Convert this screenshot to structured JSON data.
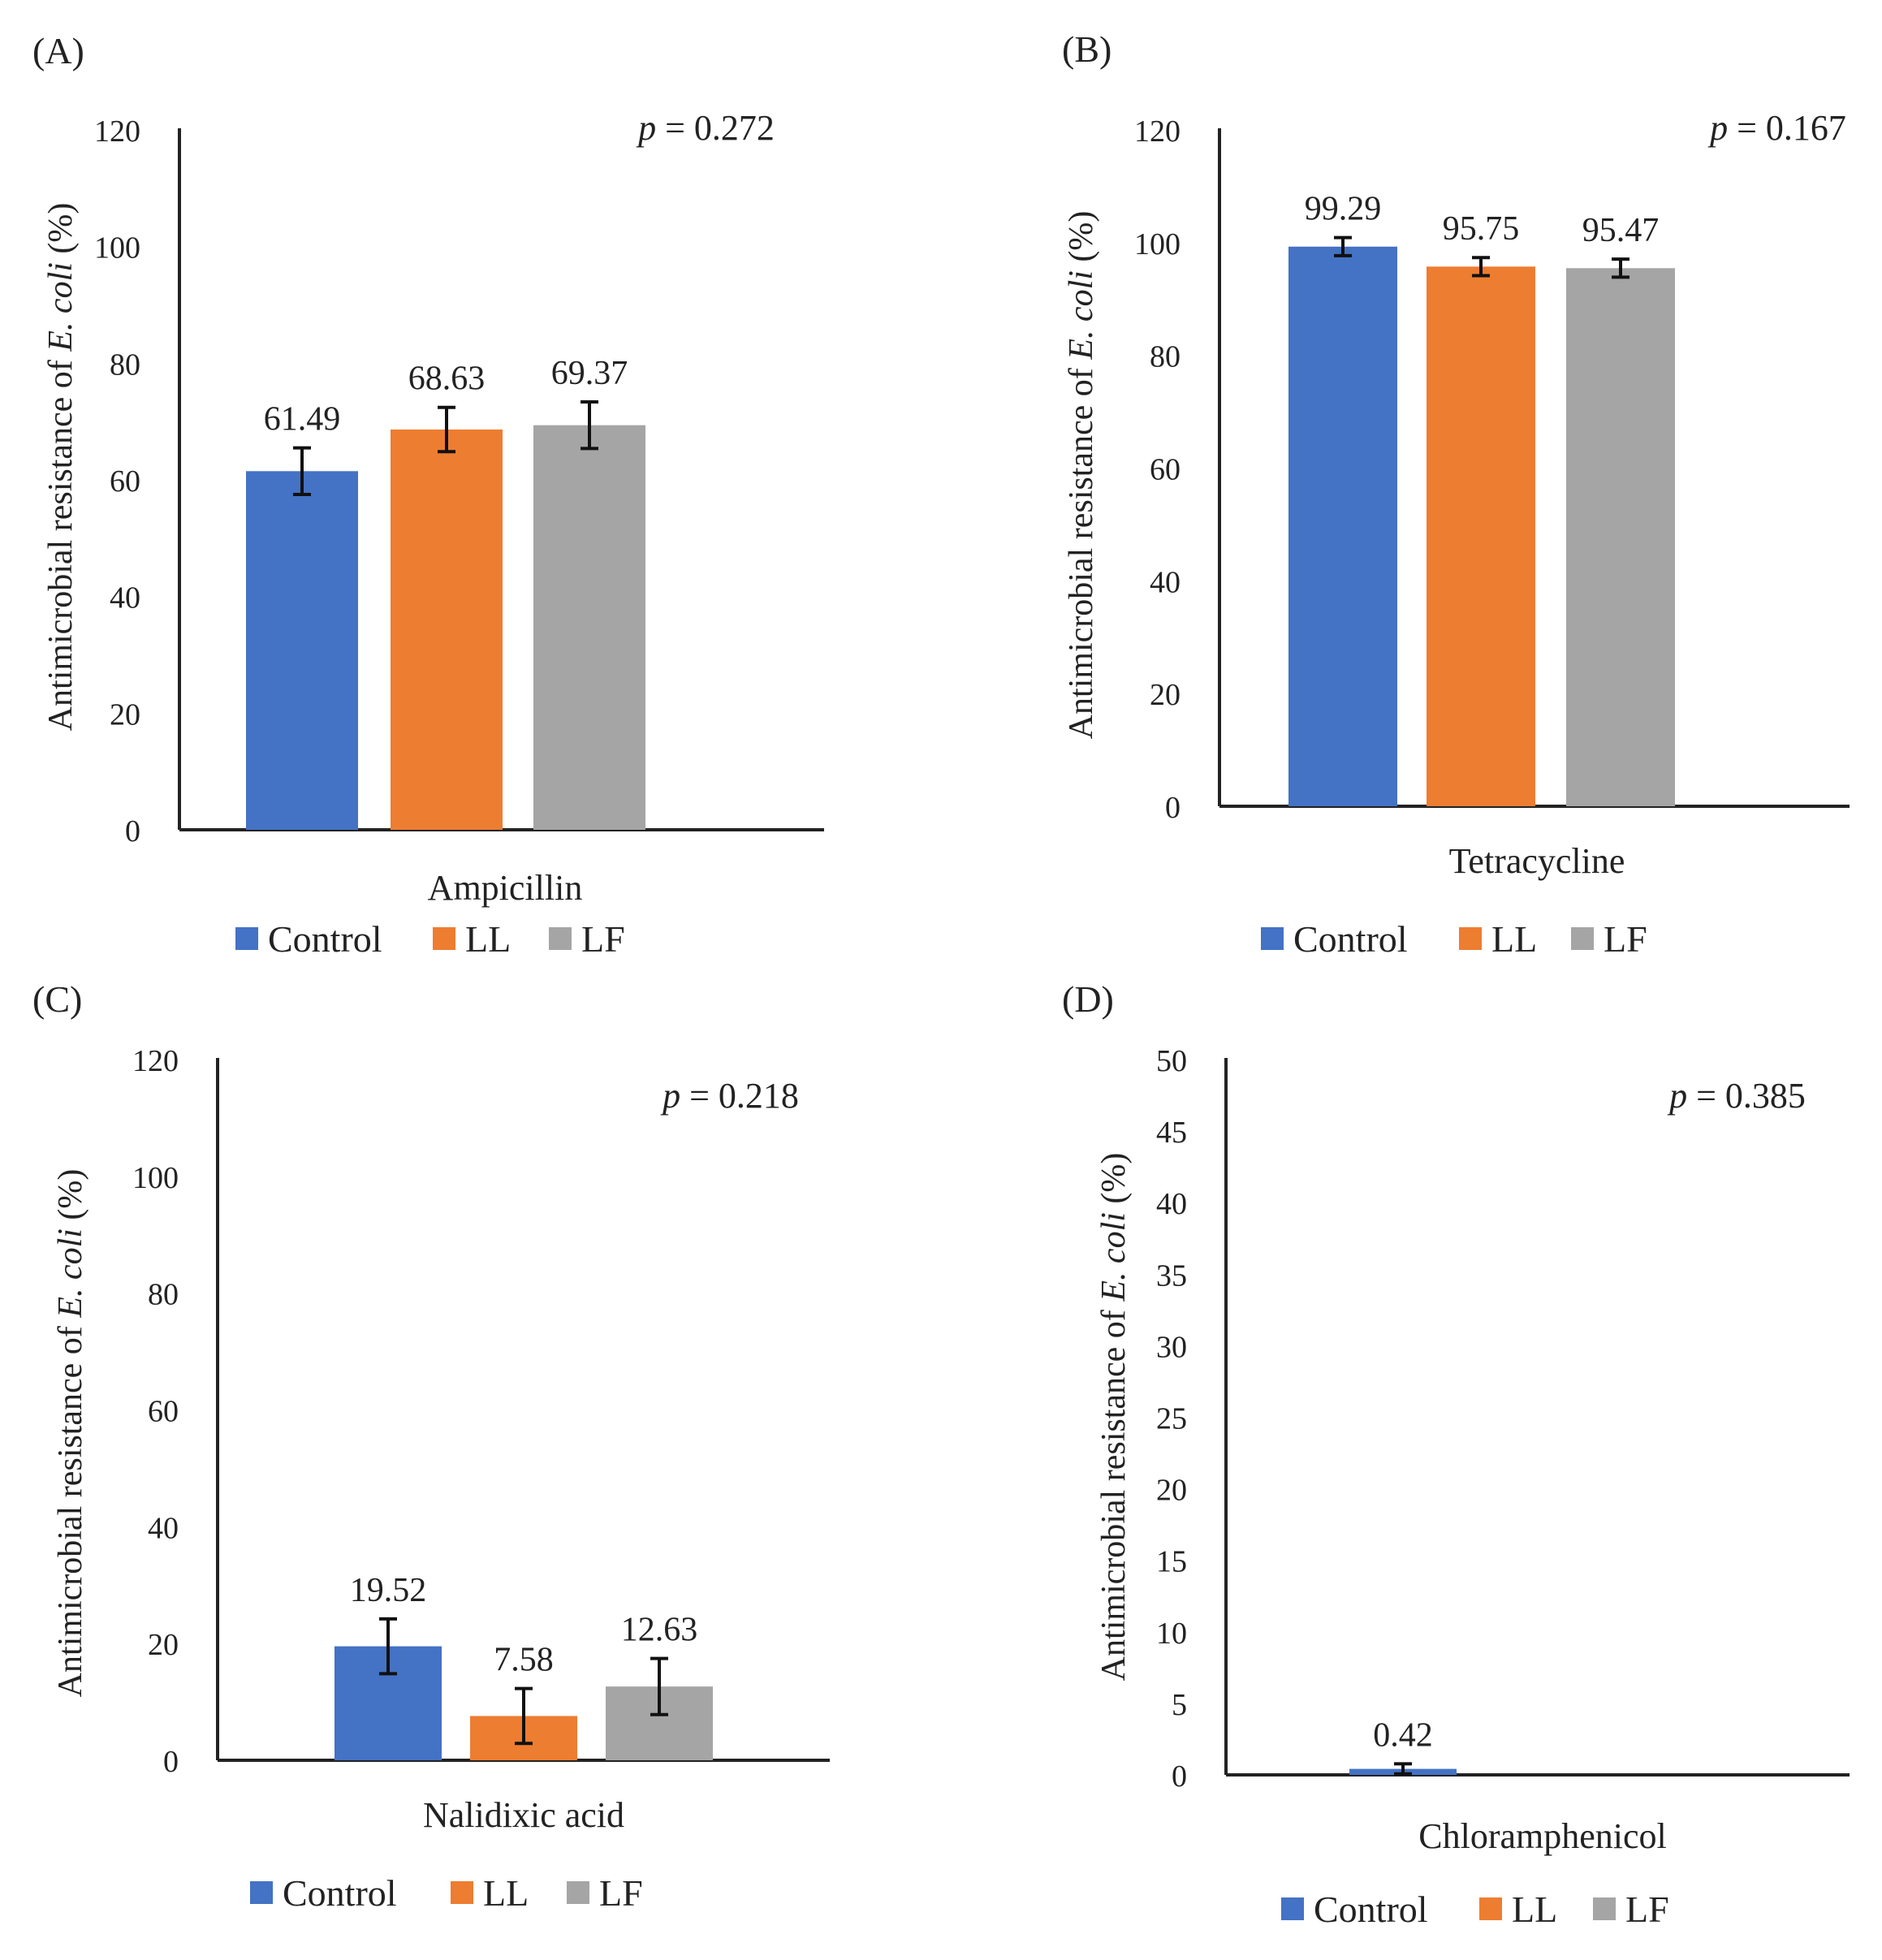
{
  "legend": [
    "Control",
    "LL",
    "LF"
  ],
  "y_axis_label": {
    "prefix": "Antimicrobial resistance of ",
    "italic": "E. coli",
    "suffix": " (%)"
  },
  "p_symbol": "p",
  "chart_data": [
    {
      "panel": "(A)",
      "type": "bar",
      "category": "Ampicillin",
      "series": [
        {
          "name": "Control",
          "value": 61.49,
          "error": 4
        },
        {
          "name": "LL",
          "value": 68.63,
          "error": 3.8
        },
        {
          "name": "LF",
          "value": 69.37,
          "error": 4
        },
        {
          "_colors": true
        }
      ],
      "ylim": [
        0,
        120
      ],
      "yticks": [
        0,
        20,
        40,
        60,
        80,
        100,
        120
      ],
      "p_value": "= 0.272"
    },
    {
      "panel": "(B)",
      "type": "bar",
      "category": "Tetracycline",
      "series": [
        {
          "name": "Control",
          "value": 99.29,
          "error": 1.6
        },
        {
          "name": "LL",
          "value": 95.75,
          "error": 1.6
        },
        {
          "name": "LF",
          "value": 95.47,
          "error": 1.6
        }
      ],
      "ylim": [
        0,
        120
      ],
      "yticks": [
        0,
        20,
        40,
        60,
        80,
        100,
        120
      ],
      "p_value": "= 0.167"
    },
    {
      "panel": "(C)",
      "type": "bar",
      "category": "Nalidixic acid",
      "series": [
        {
          "name": "Control",
          "value": 19.52,
          "error": 4.7
        },
        {
          "name": "LL",
          "value": 7.58,
          "error": 4.7
        },
        {
          "name": "LF",
          "value": 12.63,
          "error": 4.8
        }
      ],
      "ylim": [
        0,
        120
      ],
      "yticks": [
        0,
        20,
        40,
        60,
        80,
        100,
        120
      ],
      "p_value": "= 0.218"
    },
    {
      "panel": "(D)",
      "type": "bar",
      "category": "Chloramphenicol",
      "series": [
        {
          "name": "Control",
          "value": 0.42,
          "error": 0.35,
          "label": "0.42"
        },
        {
          "name": "LL",
          "value": 0,
          "label": ""
        },
        {
          "name": "LF",
          "value": 0,
          "label": ""
        }
      ],
      "ylim": [
        0,
        50
      ],
      "yticks": [
        0,
        5,
        10,
        15,
        20,
        25,
        30,
        35,
        40,
        45,
        50
      ],
      "p_value": "= 0.385"
    }
  ],
  "colors": {
    "Control": "#4472c4",
    "LL": "#ed7d31",
    "LF": "#a5a5a5"
  }
}
